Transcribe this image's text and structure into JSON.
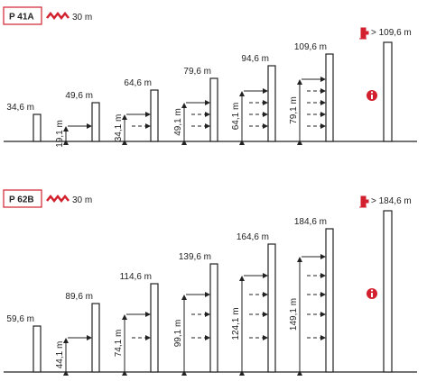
{
  "panels": [
    {
      "label": "P 41A",
      "reach": "30 m",
      "columns": [
        "34,6 m",
        "49,6 m",
        "64,6 m",
        "79,6 m",
        "94,6 m",
        "109,6 m"
      ],
      "dimensions": [
        "19,1 m",
        "34,1 m",
        "49,1 m",
        "64,1 m",
        "79,1 m"
      ],
      "max_height": "> 109,6 m"
    },
    {
      "label": "P 62B",
      "reach": "30 m",
      "columns": [
        "59,6 m",
        "89,6 m",
        "114,6 m",
        "139,6 m",
        "164,6 m",
        "184,6 m"
      ],
      "dimensions": [
        "44,1 m",
        "74,1 m",
        "99,1 m",
        "124,1 m",
        "149,1 m"
      ],
      "max_height": "> 184,6 m"
    }
  ]
}
